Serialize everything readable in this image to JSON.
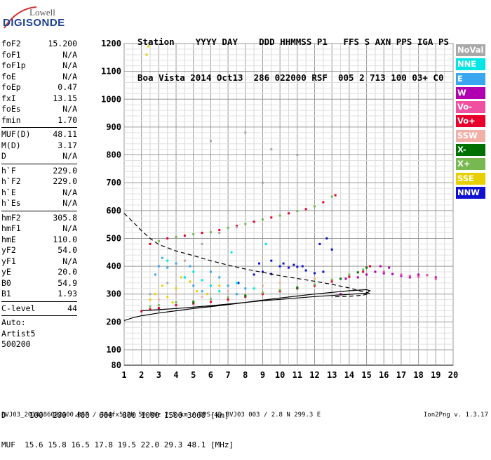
{
  "logo": {
    "company": "Lowell",
    "product": "DIGISONDE"
  },
  "header": {
    "line1": "Station    YYYY DAY    DDD HHMMSS P1   FFS S AXN PPS IGA PS",
    "line2": "Boa Vista 2014 Oct13  286 022000 RSF  005 2 713 100 03+ C0"
  },
  "parameters": [
    {
      "type": "row",
      "key": "foF2",
      "value": "15.200"
    },
    {
      "type": "row",
      "key": "foF1",
      "value": "N/A"
    },
    {
      "type": "row",
      "key": "foF1p",
      "value": "N/A"
    },
    {
      "type": "row",
      "key": "foE",
      "value": "N/A"
    },
    {
      "type": "row",
      "key": "foEp",
      "value": "0.47"
    },
    {
      "type": "row",
      "key": "fxI",
      "value": "13.15"
    },
    {
      "type": "row",
      "key": "foEs",
      "value": "N/A"
    },
    {
      "type": "row",
      "key": "fmin",
      "value": "1.70"
    },
    {
      "type": "sep"
    },
    {
      "type": "row",
      "key": "MUF(D)",
      "value": "48.11"
    },
    {
      "type": "row",
      "key": "M(D)",
      "value": "3.17"
    },
    {
      "type": "row",
      "key": "D",
      "value": "N/A"
    },
    {
      "type": "sep"
    },
    {
      "type": "row",
      "key": "h`F",
      "value": "229.0"
    },
    {
      "type": "row",
      "key": "h`F2",
      "value": "229.0"
    },
    {
      "type": "row",
      "key": "h`E",
      "value": "N/A"
    },
    {
      "type": "row",
      "key": "h`Es",
      "value": "N/A"
    },
    {
      "type": "sep"
    },
    {
      "type": "row",
      "key": "hmF2",
      "value": "305.8"
    },
    {
      "type": "row",
      "key": "hmF1",
      "value": "N/A"
    },
    {
      "type": "row",
      "key": "hmE",
      "value": "110.0"
    },
    {
      "type": "row",
      "key": "yF2",
      "value": "54.0"
    },
    {
      "type": "row",
      "key": "yF1",
      "value": "N/A"
    },
    {
      "type": "row",
      "key": "yE",
      "value": "20.0"
    },
    {
      "type": "row",
      "key": "B0",
      "value": "54.9"
    },
    {
      "type": "row",
      "key": "B1",
      "value": "1.93"
    },
    {
      "type": "sep"
    },
    {
      "type": "row",
      "key": "C-level",
      "value": "44"
    },
    {
      "type": "sep"
    },
    {
      "type": "text",
      "value": "Auto:"
    },
    {
      "type": "text",
      "value": "Artist5"
    },
    {
      "type": "text",
      "value": "500200"
    }
  ],
  "legend": [
    {
      "label": "NoVal",
      "color": "#a8a8a8"
    },
    {
      "label": "NNE",
      "color": "#00e5e5"
    },
    {
      "label": "E",
      "color": "#3aa6f0"
    },
    {
      "label": "W",
      "color": "#b000b0"
    },
    {
      "label": "Vo-",
      "color": "#f050a0"
    },
    {
      "label": "Vo+",
      "color": "#e8002a"
    },
    {
      "label": "SSW",
      "color": "#f0b0a8"
    },
    {
      "label": "X-",
      "color": "#007000"
    },
    {
      "label": "X+",
      "color": "#78b850"
    },
    {
      "label": "SSE",
      "color": "#e8d000"
    },
    {
      "label": "NNW",
      "color": "#1010d0"
    }
  ],
  "bottom": {
    "line1": "D     100  200  400  600  800 1000 1500 3000 [km]",
    "line2": "MUF  15.6 15.8 16.5 17.8 19.5 22.0 29.3 48.1 [MHz]"
  },
  "footer": "BVJ03_2014286022000.RSF / 384fx512h 50 kHz 2.5 km / DPS-4D BVJ03 003 / 2.8 N 299.3 E",
  "version": "Ion2Png v. 1.3.17",
  "chart_data": {
    "type": "scatter",
    "title": "",
    "xlabel": "",
    "ylabel": "",
    "xlim": [
      1,
      20
    ],
    "ylim": [
      80,
      1200
    ],
    "xticks": [
      "1",
      "2",
      "3",
      "4",
      "5",
      "6",
      "7",
      "8",
      "9",
      "10",
      "11",
      "12",
      "13",
      "14",
      "15",
      "16",
      "17",
      "18",
      "19",
      "20"
    ],
    "yticks": [
      "80",
      "100",
      "200",
      "300",
      "400",
      "500",
      "600",
      "700",
      "800",
      "900",
      "1000",
      "1100",
      "1200"
    ],
    "grid": true,
    "series": [
      {
        "name": "NNW",
        "color": "#1010d0",
        "points": [
          [
            9.0,
            380
          ],
          [
            9.5,
            372
          ],
          [
            10.0,
            400
          ],
          [
            10.5,
            395
          ],
          [
            11.0,
            398
          ],
          [
            11.5,
            385
          ],
          [
            12.0,
            375
          ],
          [
            12.5,
            380
          ],
          [
            9.5,
            420
          ],
          [
            10.2,
            410
          ],
          [
            10.8,
            405
          ],
          [
            11.3,
            400
          ],
          [
            8.5,
            370
          ],
          [
            7.6,
            340
          ],
          [
            8.8,
            410
          ],
          [
            12.3,
            480
          ],
          [
            12.7,
            500
          ],
          [
            13.0,
            460
          ]
        ]
      },
      {
        "name": "W",
        "color": "#b000b0",
        "points": [
          [
            15.0,
            370
          ],
          [
            15.5,
            380
          ],
          [
            16.0,
            375
          ],
          [
            16.5,
            372
          ],
          [
            17.0,
            365
          ],
          [
            14.5,
            360
          ],
          [
            13.8,
            355
          ],
          [
            16.3,
            395
          ],
          [
            15.8,
            400
          ],
          [
            17.5,
            360
          ],
          [
            18.0,
            370
          ],
          [
            18.5,
            368
          ],
          [
            19.0,
            360
          ],
          [
            13.5,
            300
          ]
        ]
      },
      {
        "name": "Vo-",
        "color": "#f050a0",
        "points": [
          [
            17.5,
            365
          ],
          [
            18.0,
            362
          ],
          [
            18.5,
            368
          ],
          [
            19.0,
            355
          ],
          [
            17.0,
            370
          ],
          [
            16.0,
            380
          ]
        ]
      },
      {
        "name": "Vo+",
        "color": "#e8002a",
        "points": [
          [
            2.0,
            238
          ],
          [
            2.5,
            245
          ],
          [
            3.0,
            250
          ],
          [
            4.0,
            260
          ],
          [
            5.0,
            266
          ],
          [
            6.0,
            272
          ],
          [
            7.0,
            280
          ],
          [
            8.0,
            290
          ],
          [
            9.0,
            300
          ],
          [
            10.0,
            310
          ],
          [
            11.0,
            320
          ],
          [
            12.0,
            330
          ],
          [
            13.0,
            345
          ],
          [
            14.0,
            362
          ],
          [
            14.8,
            380
          ],
          [
            15.2,
            400
          ],
          [
            2.5,
            480
          ],
          [
            3.5,
            500
          ],
          [
            4.5,
            510
          ],
          [
            5.5,
            520
          ],
          [
            6.5,
            530
          ],
          [
            7.5,
            545
          ],
          [
            8.5,
            560
          ],
          [
            9.5,
            575
          ],
          [
            10.5,
            590
          ],
          [
            11.5,
            605
          ],
          [
            12.5,
            630
          ],
          [
            13.2,
            655
          ]
        ]
      },
      {
        "name": "X+",
        "color": "#78b850",
        "points": [
          [
            2.5,
            255
          ],
          [
            3.0,
            260
          ],
          [
            4.0,
            270
          ],
          [
            5.0,
            275
          ],
          [
            6.0,
            282
          ],
          [
            7.0,
            288
          ],
          [
            8.0,
            296
          ],
          [
            9.0,
            305
          ],
          [
            10.0,
            315
          ],
          [
            11.0,
            325
          ],
          [
            12.0,
            335
          ],
          [
            13.0,
            352
          ],
          [
            14.0,
            370
          ],
          [
            14.8,
            388
          ],
          [
            3.0,
            490
          ],
          [
            4.0,
            505
          ],
          [
            5.0,
            515
          ],
          [
            6.0,
            522
          ],
          [
            7.0,
            538
          ],
          [
            8.0,
            552
          ],
          [
            9.0,
            568
          ],
          [
            10.0,
            582
          ],
          [
            11.0,
            598
          ],
          [
            12.0,
            615
          ],
          [
            13.0,
            650
          ]
        ]
      },
      {
        "name": "X-",
        "color": "#007000",
        "points": [
          [
            5.0,
            270
          ],
          [
            8.0,
            294
          ],
          [
            11.0,
            322
          ],
          [
            13.5,
            355
          ],
          [
            14.5,
            378
          ],
          [
            15.0,
            395
          ]
        ]
      },
      {
        "name": "SSE",
        "color": "#e8d000",
        "points": [
          [
            2.8,
            300
          ],
          [
            3.2,
            330
          ],
          [
            3.5,
            290
          ],
          [
            4.0,
            320
          ],
          [
            4.3,
            360
          ],
          [
            4.8,
            345
          ],
          [
            5.2,
            310
          ],
          [
            5.8,
            300
          ],
          [
            6.5,
            330
          ],
          [
            2.5,
            280
          ],
          [
            3.8,
            270
          ],
          [
            2.3,
            1160
          ],
          [
            2.4,
            1190
          ]
        ]
      },
      {
        "name": "E",
        "color": "#3aa6f0",
        "points": [
          [
            3.0,
            400
          ],
          [
            3.5,
            395
          ],
          [
            4.0,
            410
          ],
          [
            4.5,
            360
          ],
          [
            5.0,
            330
          ],
          [
            5.5,
            310
          ],
          [
            6.0,
            380
          ],
          [
            6.5,
            360
          ],
          [
            7.0,
            330
          ],
          [
            7.5,
            300
          ],
          [
            8.0,
            320
          ],
          [
            2.8,
            370
          ],
          [
            3.2,
            430
          ],
          [
            4.8,
            400
          ]
        ]
      },
      {
        "name": "NNE",
        "color": "#00e5e5",
        "points": [
          [
            4.5,
            360
          ],
          [
            5.0,
            380
          ],
          [
            5.5,
            350
          ],
          [
            6.0,
            330
          ],
          [
            6.5,
            310
          ],
          [
            7.5,
            340
          ],
          [
            8.5,
            320
          ],
          [
            9.2,
            480
          ],
          [
            7.2,
            450
          ],
          [
            3.5,
            420
          ]
        ]
      },
      {
        "name": "SSW",
        "color": "#f0b0a8",
        "points": [
          [
            3.0,
            280
          ],
          [
            4.0,
            300
          ],
          [
            5.5,
            290
          ],
          [
            7.0,
            310
          ],
          [
            9.0,
            330
          ],
          [
            10.0,
            340
          ],
          [
            12.0,
            355
          ]
        ]
      },
      {
        "name": "NoVal",
        "color": "#a8a8a8",
        "points": [
          [
            2.5,
            300
          ],
          [
            3.5,
            340
          ],
          [
            4.5,
            420
          ],
          [
            5.5,
            480
          ],
          [
            6.5,
            520
          ],
          [
            7.5,
            540
          ],
          [
            9.0,
            700
          ],
          [
            9.5,
            820
          ],
          [
            11.0,
            800
          ],
          [
            6.0,
            850
          ],
          [
            8.0,
            880
          ],
          [
            3.0,
            240
          ]
        ]
      }
    ],
    "curves": [
      {
        "name": "trace",
        "color": "#000000",
        "style": "solid",
        "points": [
          [
            1,
            205
          ],
          [
            1.5,
            215
          ],
          [
            2,
            222
          ],
          [
            3,
            232
          ],
          [
            4,
            240
          ],
          [
            5,
            248
          ],
          [
            6,
            255
          ],
          [
            7,
            262
          ],
          [
            8,
            270
          ],
          [
            9,
            278
          ],
          [
            10,
            286
          ],
          [
            11,
            293
          ],
          [
            12,
            300
          ],
          [
            13,
            306
          ],
          [
            14,
            312
          ],
          [
            15,
            316
          ],
          [
            15.2,
            312
          ],
          [
            15,
            303
          ],
          [
            14,
            299
          ],
          [
            13,
            295
          ],
          [
            12,
            291
          ],
          [
            11,
            286
          ],
          [
            10,
            281
          ],
          [
            9,
            276
          ],
          [
            8,
            270
          ],
          [
            7,
            264
          ],
          [
            6,
            258
          ],
          [
            5,
            253
          ],
          [
            4,
            248
          ],
          [
            3,
            244
          ],
          [
            2,
            240
          ]
        ]
      },
      {
        "name": "profile",
        "color": "#000000",
        "style": "dashed",
        "points": [
          [
            1,
            590
          ],
          [
            1.5,
            560
          ],
          [
            2,
            528
          ],
          [
            2.5,
            500
          ],
          [
            3,
            478
          ],
          [
            4,
            455
          ],
          [
            5,
            438
          ],
          [
            6,
            420
          ],
          [
            7,
            404
          ],
          [
            8,
            390
          ],
          [
            9,
            378
          ],
          [
            10,
            366
          ],
          [
            11,
            356
          ],
          [
            12,
            346
          ],
          [
            13,
            335
          ],
          [
            14,
            322
          ],
          [
            14.7,
            310
          ],
          [
            15.2,
            302
          ],
          [
            14.8,
            296
          ],
          [
            14,
            292
          ],
          [
            13,
            290
          ]
        ]
      }
    ]
  }
}
